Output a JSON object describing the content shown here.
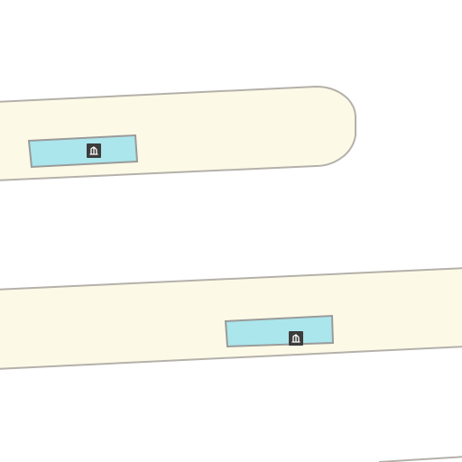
{
  "map": {
    "type": "tile",
    "colors": {
      "background": "#ffffff",
      "platform_fill": "#fcfae6",
      "platform_outline": "#b4b0aa",
      "water_fill": "#aae6ec",
      "water_outline": "#9a9a9a",
      "icon_bg": "#3c3c3c",
      "icon_fg": "#ffffff"
    },
    "features": [
      {
        "kind": "platform",
        "name": "upper-platform"
      },
      {
        "kind": "platform",
        "name": "lower-platform"
      },
      {
        "kind": "water-basin",
        "name": "upper-water-basin",
        "icon": "fountain-icon"
      },
      {
        "kind": "water-basin",
        "name": "lower-water-basin",
        "icon": "fountain-icon"
      },
      {
        "kind": "line",
        "name": "bottom-edge-line"
      }
    ]
  }
}
